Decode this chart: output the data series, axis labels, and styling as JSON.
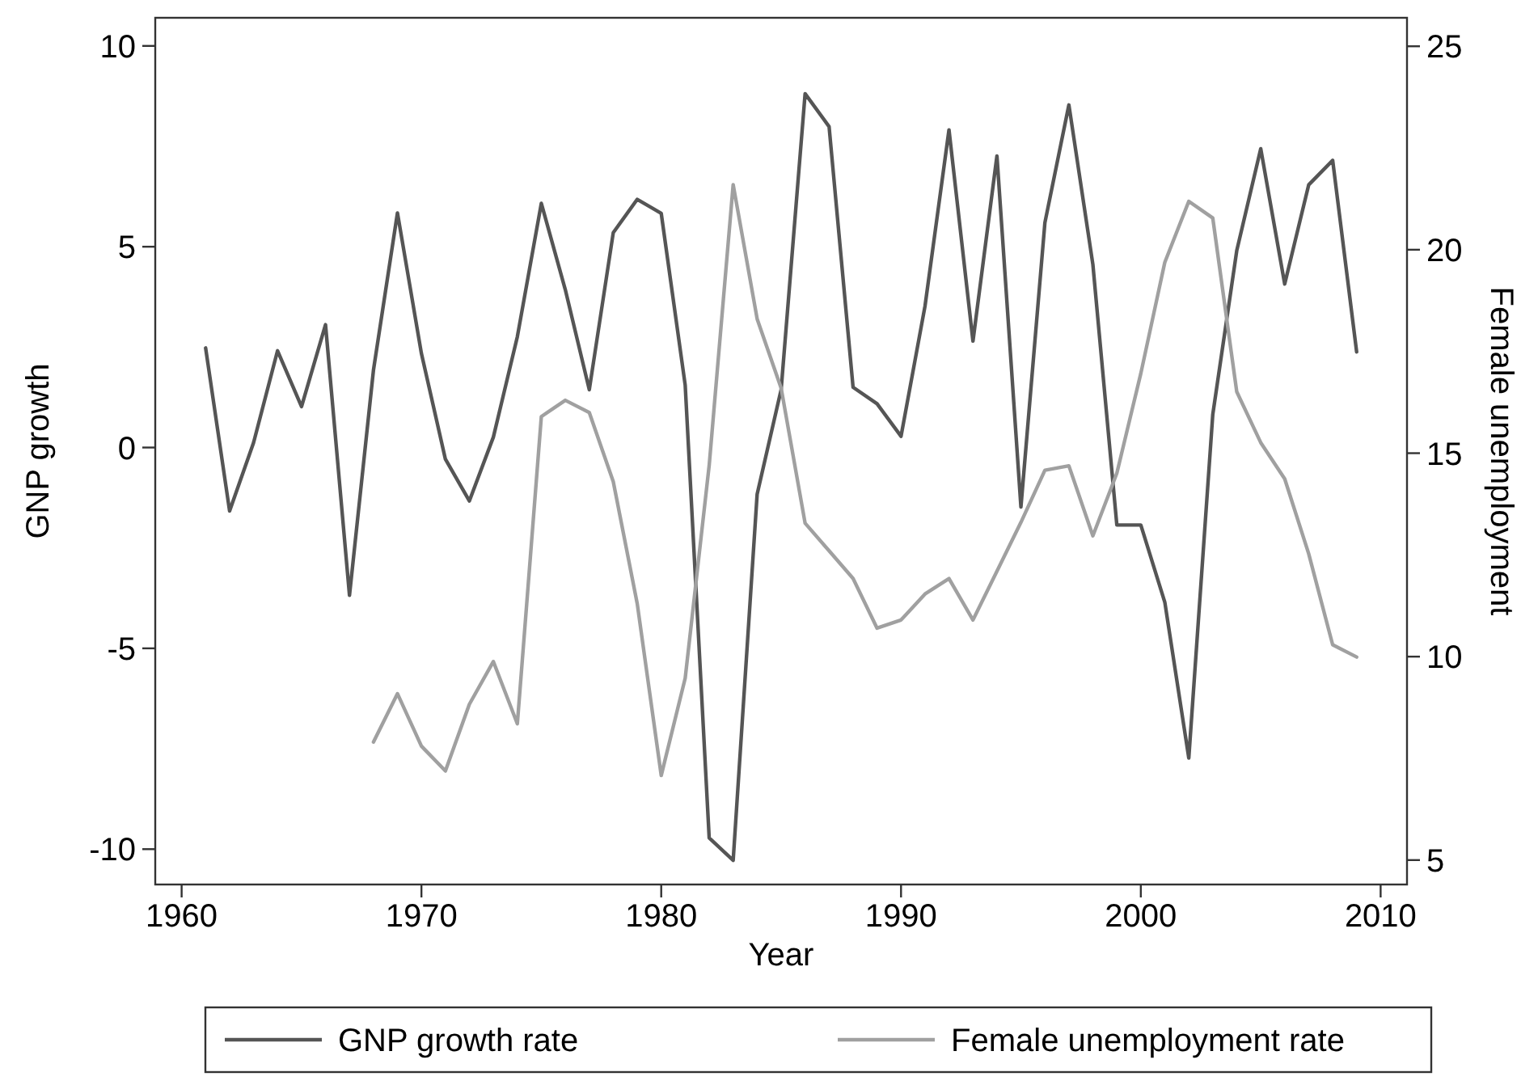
{
  "chart_data": {
    "type": "line",
    "xlabel": "Year",
    "ylabel": "GNP growth",
    "y2label": "Female unemployment",
    "xlim": [
      1958.9,
      2011.1
    ],
    "xticks": [
      1960,
      1970,
      1980,
      1990,
      2000,
      2010
    ],
    "ylim": [
      -10.88,
      10.7
    ],
    "yticks": [
      -10,
      -5,
      0,
      5,
      10
    ],
    "y2lim": [
      4.4,
      25.7
    ],
    "y2ticks": [
      5,
      10,
      15,
      20,
      25
    ],
    "legend": "bottom",
    "grid": false,
    "line_style": "solid",
    "marker": "none",
    "series": [
      {
        "name": "GNP growth rate",
        "color": "#555555",
        "x": [
          1961,
          1962,
          1963,
          1964,
          1965,
          1966,
          1967,
          1968,
          1969,
          1970,
          1971,
          1972,
          1973,
          1974,
          1975,
          1976,
          1977,
          1978,
          1979,
          1980,
          1981,
          1982,
          1983,
          1984,
          1985,
          1986,
          1987,
          1988,
          1989,
          1990,
          1991,
          1992,
          1993,
          1994,
          1995,
          1996,
          1997,
          1998,
          1999,
          2000,
          2001,
          2002,
          2003,
          2004,
          2005,
          2006,
          2007,
          2008,
          2009
        ],
        "values": [
          2.48,
          -1.58,
          0.12,
          2.41,
          1.02,
          3.06,
          -3.68,
          1.93,
          5.84,
          2.34,
          -0.29,
          -1.33,
          0.26,
          2.76,
          6.08,
          3.93,
          1.44,
          5.35,
          6.18,
          5.83,
          1.55,
          -9.72,
          -10.28,
          -1.16,
          1.44,
          8.81,
          7.99,
          1.5,
          1.09,
          0.28,
          3.52,
          7.91,
          2.65,
          7.26,
          -1.48,
          5.6,
          8.53,
          4.56,
          -1.93,
          -1.93,
          -3.85,
          -7.73,
          0.82,
          4.9,
          7.44,
          4.07,
          6.54,
          7.15,
          2.38
        ]
      },
      {
        "name": "Female unemployment rate",
        "color": "#a0a0a0",
        "axis": "y2",
        "x": [
          1968,
          1969,
          1970,
          1971,
          1972,
          1973,
          1974,
          1975,
          1976,
          1977,
          1978,
          1979,
          1980,
          1981,
          1982,
          1983,
          1984,
          1985,
          1986,
          1987,
          1988,
          1989,
          1990,
          1991,
          1992,
          1993,
          1994,
          1995,
          1996,
          1997,
          1998,
          1999,
          2000,
          2001,
          2002,
          2003,
          2004,
          2005,
          2006,
          2007,
          2008,
          2009
        ],
        "values": [
          7.9,
          9.09,
          7.8,
          7.19,
          8.83,
          9.88,
          8.35,
          15.9,
          16.3,
          16.0,
          14.3,
          11.3,
          7.08,
          9.47,
          14.7,
          21.6,
          18.3,
          16.6,
          13.28,
          12.6,
          11.92,
          10.7,
          10.9,
          11.54,
          11.92,
          10.9,
          12.1,
          13.3,
          14.58,
          14.69,
          12.97,
          14.51,
          16.96,
          19.69,
          21.19,
          20.78,
          16.51,
          15.26,
          14.37,
          12.53,
          10.29,
          9.99
        ]
      }
    ]
  }
}
